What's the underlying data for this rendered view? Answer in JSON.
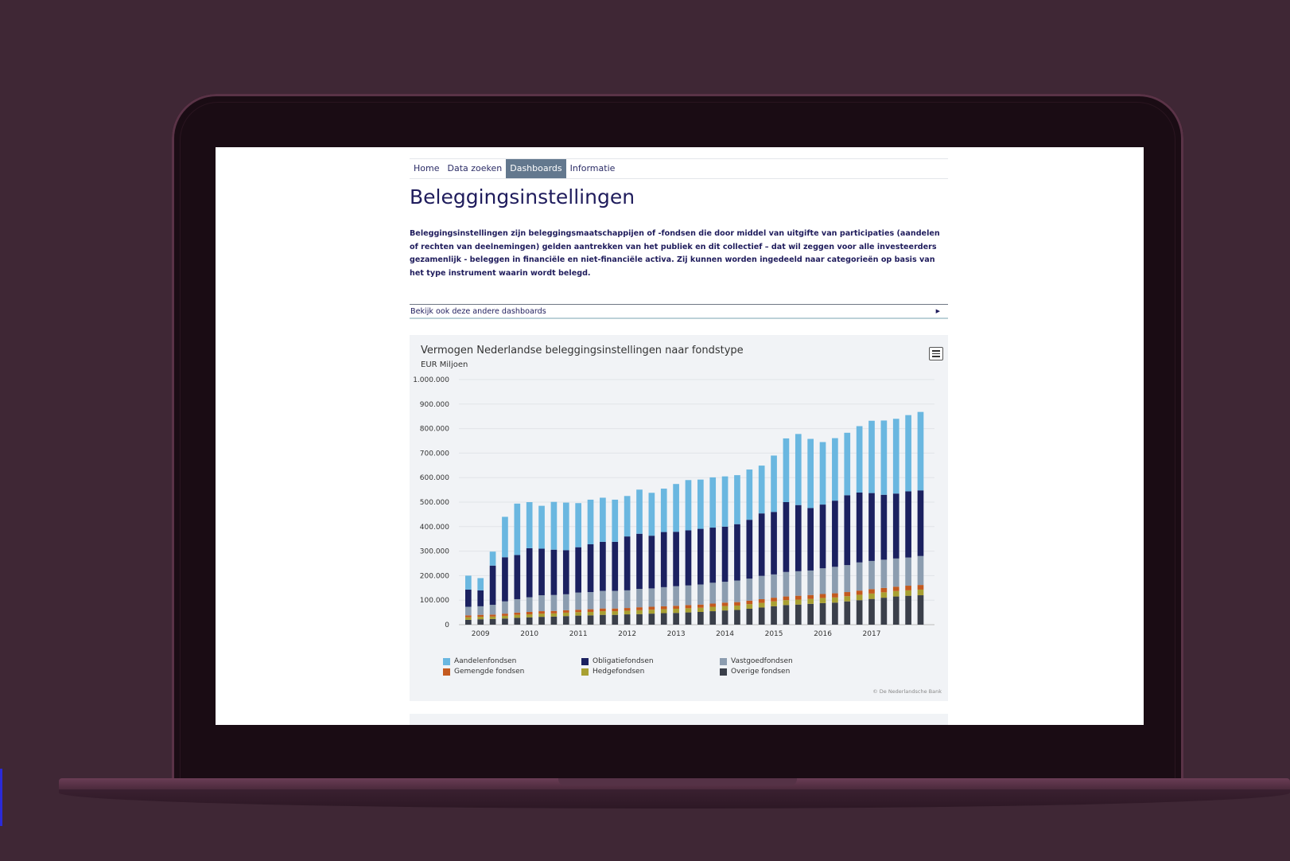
{
  "nav": {
    "items": [
      {
        "label": "Home",
        "active": false
      },
      {
        "label": "Data zoeken",
        "active": false
      },
      {
        "label": "Dashboards",
        "active": true
      },
      {
        "label": "Informatie",
        "active": false
      }
    ]
  },
  "page": {
    "title": "Beleggingsinstellingen",
    "intro": "Beleggingsinstellingen zijn beleggingsmaatschappijen of -fondsen die door middel van uitgifte van participaties (aandelen of rechten van deelnemingen) gelden aantrekken van het publiek en dit collectief – dat wil zeggen voor alle investeerders gezamenlijk - beleggen in financiële en niet-financiële activa. Zij kunnen worden ingedeeld naar categorieën op basis van het type instrument waarin wordt belegd."
  },
  "accordion": {
    "label": "Bekijk ook deze andere dashboards"
  },
  "chart_card": {
    "credit": "© De Nederlandsche Bank",
    "menu_icon": "hamburger-menu-icon"
  },
  "colors": {
    "nav_active": "#63788e",
    "text_primary": "#1f1c5c",
    "aandelen": "#6ab7e0",
    "obligatie": "#1b2160",
    "vastgoed": "#8c9db0",
    "gemengd": "#c45a1f",
    "hedge": "#a8a032",
    "overig": "#3a3f4a"
  },
  "chart_data": {
    "type": "bar",
    "stacked": true,
    "title": "Vermogen Nederlandse beleggingsinstellingen naar fondstype",
    "subtitle": "EUR Miljoen",
    "ylim": [
      0,
      1000000
    ],
    "yticks": [
      "0",
      "100.000",
      "200.000",
      "300.000",
      "400.000",
      "500.000",
      "600.000",
      "700.000",
      "800.000",
      "900.000",
      "1.000.000"
    ],
    "xtick_labels": [
      "2009",
      "2010",
      "2011",
      "2012",
      "2013",
      "2014",
      "2015",
      "2016",
      "2017"
    ],
    "grid": true,
    "legend_position": "bottom",
    "series": [
      {
        "name": "Overige fondsen",
        "color": "#3a3f4a",
        "values": [
          20000,
          22000,
          23000,
          25000,
          28000,
          30000,
          32000,
          33000,
          35000,
          37000,
          38000,
          40000,
          40000,
          42000,
          43000,
          45000,
          47000,
          48000,
          50000,
          52000,
          55000,
          58000,
          60000,
          65000,
          70000,
          75000,
          80000,
          82000,
          85000,
          88000,
          90000,
          95000,
          100000,
          105000,
          110000,
          115000,
          118000,
          120000
        ]
      },
      {
        "name": "Hedgefondsen",
        "color": "#a8a032",
        "values": [
          10000,
          10000,
          10000,
          11000,
          12000,
          12000,
          13000,
          13000,
          14000,
          14000,
          14000,
          15000,
          15000,
          15000,
          16000,
          16000,
          16000,
          17000,
          17000,
          17000,
          18000,
          18000,
          18000,
          19000,
          19000,
          20000,
          20000,
          20000,
          20000,
          21000,
          21000,
          21000,
          22000,
          22000,
          22000,
          22000,
          22000,
          23000
        ]
      },
      {
        "name": "Gemengde fondsen",
        "color": "#c45a1f",
        "values": [
          8000,
          8000,
          8000,
          9000,
          9000,
          10000,
          10000,
          10000,
          10000,
          10000,
          11000,
          11000,
          11000,
          11000,
          12000,
          12000,
          12000,
          12000,
          13000,
          13000,
          13000,
          14000,
          14000,
          14000,
          15000,
          15000,
          15000,
          16000,
          16000,
          16000,
          17000,
          17000,
          17000,
          18000,
          18000,
          18000,
          19000,
          19000
        ]
      },
      {
        "name": "Vastgoedfondsen",
        "color": "#8c9db0",
        "values": [
          35000,
          35000,
          40000,
          50000,
          55000,
          60000,
          65000,
          65000,
          65000,
          70000,
          70000,
          72000,
          72000,
          72000,
          75000,
          75000,
          78000,
          80000,
          80000,
          82000,
          85000,
          85000,
          88000,
          90000,
          95000,
          95000,
          100000,
          100000,
          100000,
          105000,
          108000,
          110000,
          115000,
          115000,
          115000,
          115000,
          115000,
          118000
        ]
      },
      {
        "name": "Obligatiefondsen",
        "color": "#1b2160",
        "values": [
          70000,
          65000,
          160000,
          180000,
          180000,
          200000,
          190000,
          185000,
          180000,
          185000,
          195000,
          200000,
          200000,
          220000,
          225000,
          215000,
          225000,
          222000,
          225000,
          227000,
          225000,
          225000,
          230000,
          240000,
          255000,
          255000,
          285000,
          270000,
          255000,
          260000,
          270000,
          285000,
          285000,
          277000,
          265000,
          265000,
          270000,
          268000
        ]
      },
      {
        "name": "Aandelenfondsen",
        "color": "#6ab7e0",
        "values": [
          57000,
          50000,
          57000,
          165000,
          210000,
          188000,
          175000,
          195000,
          194000,
          180000,
          182000,
          180000,
          172000,
          165000,
          180000,
          175000,
          177000,
          195000,
          205000,
          201000,
          205000,
          205000,
          200000,
          205000,
          195000,
          230000,
          260000,
          290000,
          282000,
          255000,
          255000,
          255000,
          271000,
          295000,
          303000,
          305000,
          311000,
          320000
        ]
      }
    ]
  },
  "next_card": {}
}
